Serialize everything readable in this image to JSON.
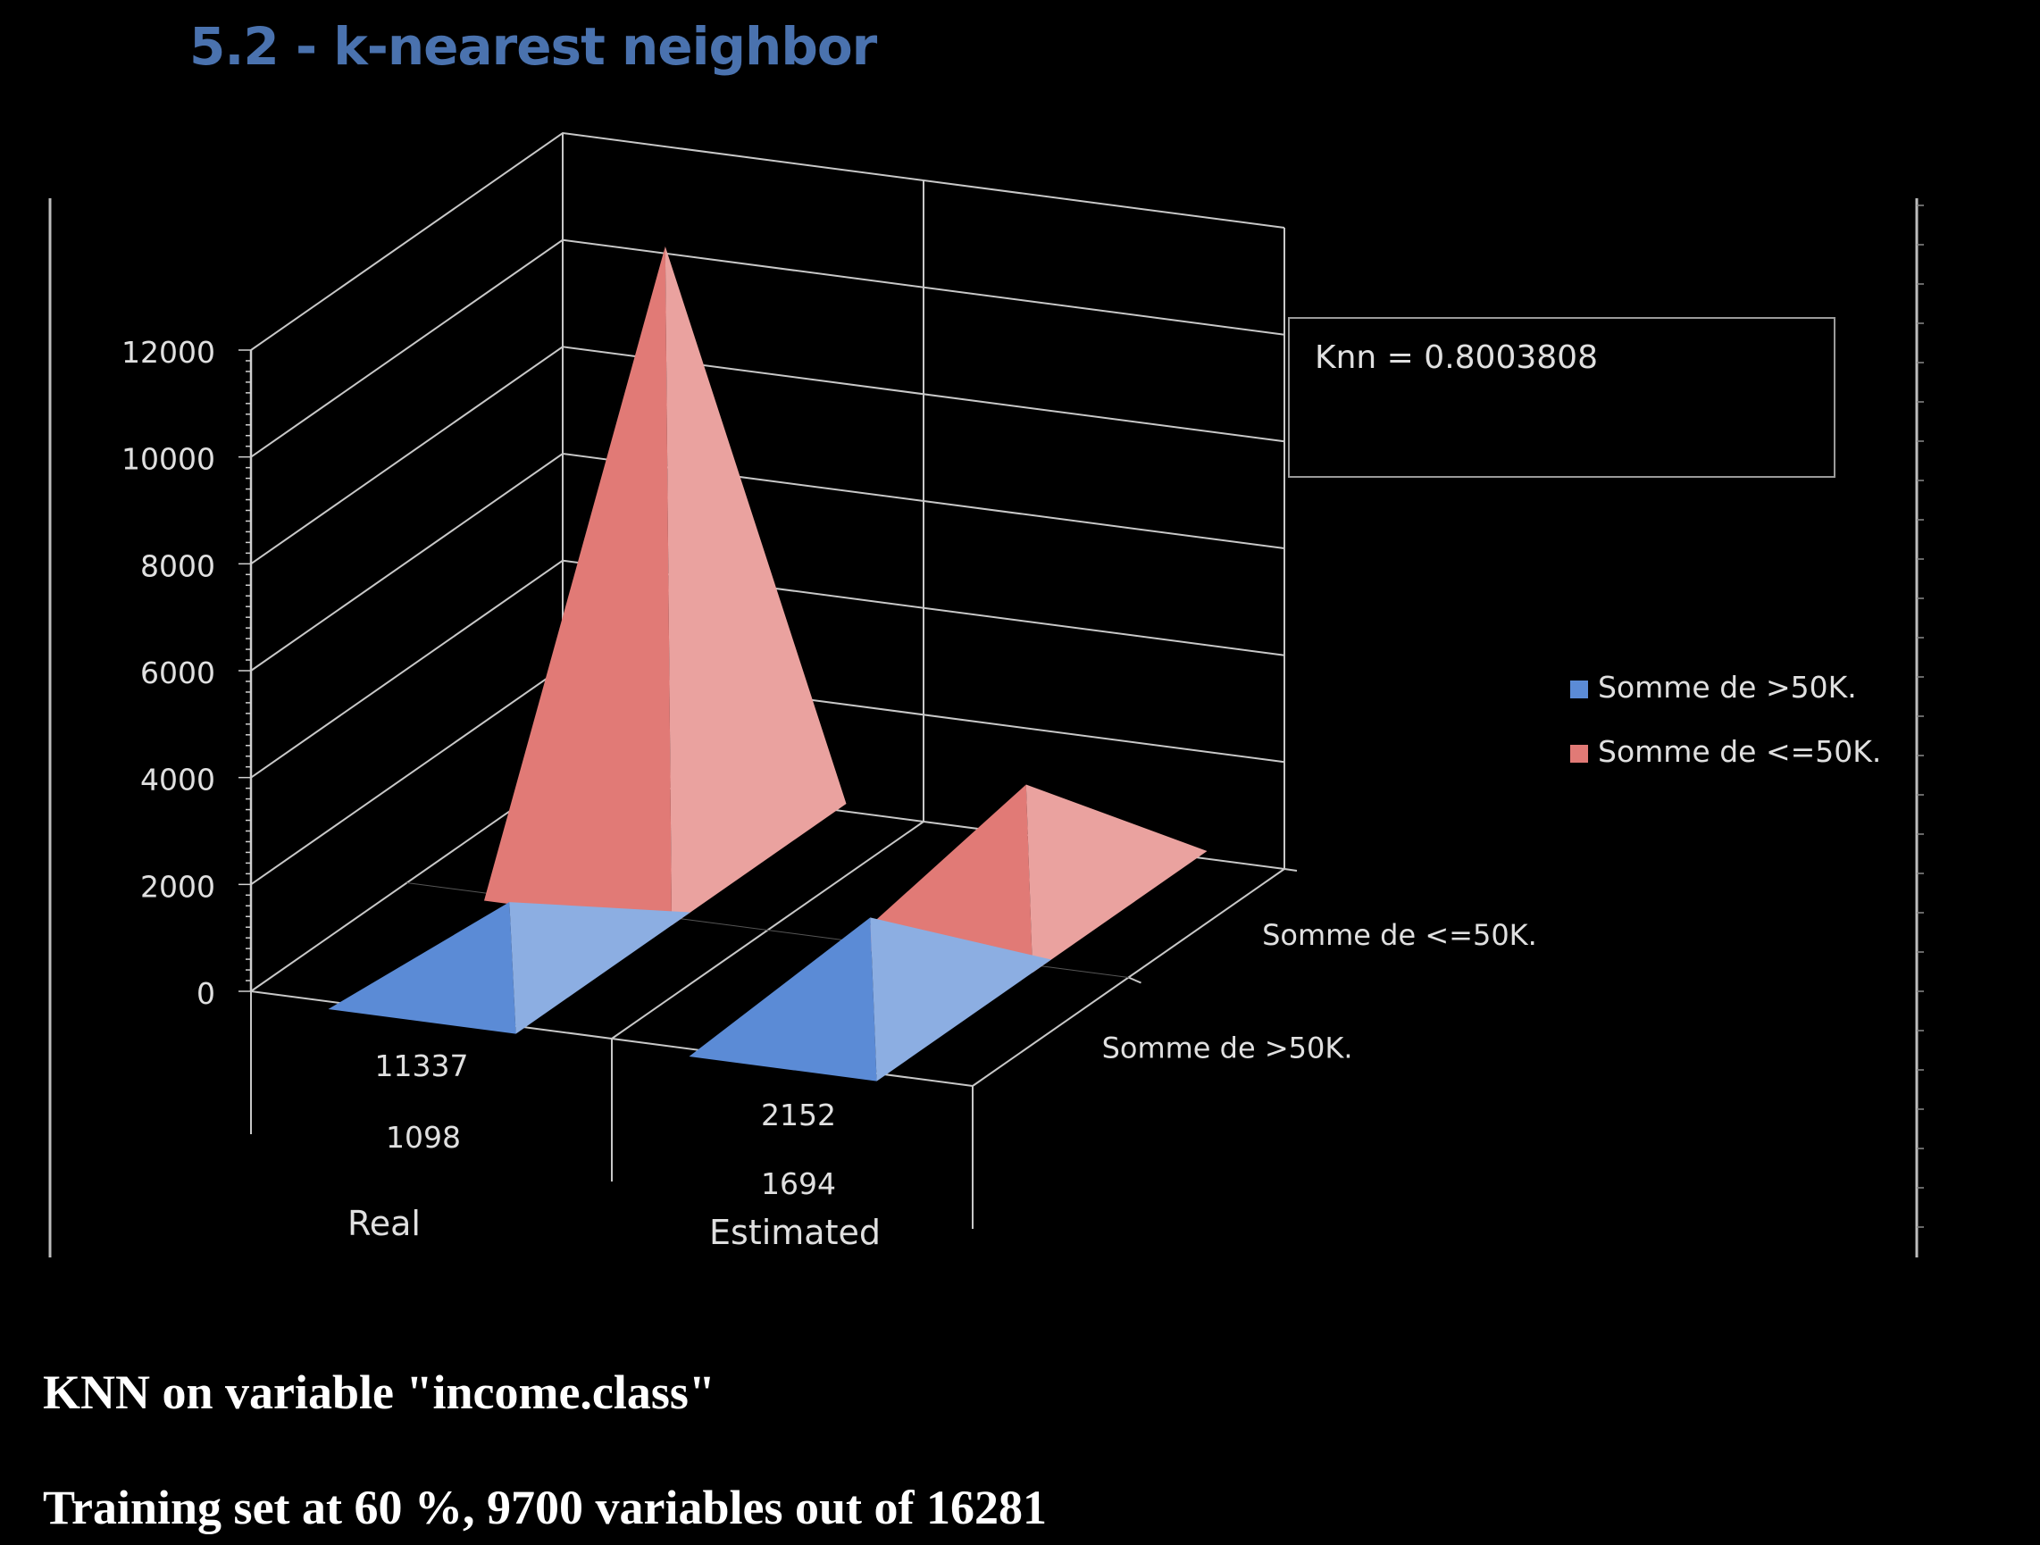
{
  "page": {
    "heading": "5.2 - k-nearest neighbor",
    "caption_1": "KNN on variable \"income.class\"",
    "caption_2": "Training set at 60 %, 9700 variables out of 16281"
  },
  "chart_data": {
    "type": "bar",
    "shape": "3d-pyramid",
    "categories": [
      "Real",
      "Estimated"
    ],
    "series": [
      {
        "name": "Somme de >50K.",
        "values": [
          1098,
          1694
        ],
        "color": "#5b8bd6"
      },
      {
        "name": "Somme de <=50K.",
        "values": [
          11337,
          2152
        ],
        "color": "#e17a76"
      }
    ],
    "data_labels": {
      "Real": [
        "11337",
        "1098"
      ],
      "Estimated": [
        "2152",
        "1694"
      ]
    },
    "depth_labels": [
      "Somme de <=50K.",
      "Somme de >50K."
    ],
    "y_ticks": [
      0,
      2000,
      4000,
      6000,
      8000,
      10000,
      12000
    ],
    "ylim": [
      0,
      12000
    ],
    "annotation": "Knn  = 0.8003808",
    "legend": {
      "position": "right",
      "items": [
        {
          "label": "Somme de >50K.",
          "color": "#5b8bd6"
        },
        {
          "label": "Somme de <=50K.",
          "color": "#e17a76"
        }
      ]
    },
    "grid": true,
    "title": "",
    "xlabel": "",
    "ylabel": ""
  }
}
